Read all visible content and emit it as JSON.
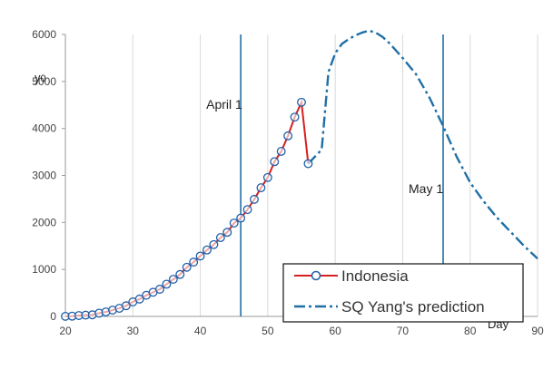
{
  "chart_data": {
    "type": "line",
    "title": "",
    "xlabel": "Day",
    "ylabel": "y0",
    "xlim": [
      20,
      90
    ],
    "ylim": [
      0,
      6000
    ],
    "x_ticks": [
      20,
      30,
      40,
      50,
      60,
      70,
      80,
      90
    ],
    "y_ticks": [
      0,
      1000,
      2000,
      3000,
      4000,
      5000,
      6000
    ],
    "grid": "vertical",
    "legend_position": "bottom-right",
    "colors": {
      "observed_line": "#d62020",
      "observed_marker": "#1f5fa8",
      "prediction": "#1f6fa6",
      "vline": "#1f6fa6",
      "grid": "#d9d9d9"
    },
    "series": [
      {
        "name": "Indonesia",
        "style": "line-with-circle-markers",
        "x": [
          20,
          21,
          22,
          23,
          24,
          25,
          26,
          27,
          28,
          29,
          30,
          31,
          32,
          33,
          34,
          35,
          36,
          37,
          38,
          39,
          40,
          41,
          42,
          43,
          44,
          45,
          46,
          47,
          48,
          49,
          50,
          51,
          52,
          53,
          54,
          55,
          56
        ],
        "y": [
          2,
          6,
          19,
          27,
          34,
          69,
          96,
          134,
          172,
          227,
          309,
          369,
          450,
          514,
          579,
          686,
          790,
          893,
          1046,
          1155,
          1285,
          1414,
          1528,
          1677,
          1790,
          1986,
          2092,
          2273,
          2491,
          2738,
          2956,
          3293,
          3512,
          3842,
          4241,
          4557,
          3250
        ]
      },
      {
        "name": "SQ Yang's prediction",
        "style": "dash-dot",
        "x": [
          56,
          58,
          59,
          60,
          61,
          62,
          63,
          64,
          65,
          66,
          67,
          68,
          70,
          72,
          74,
          76,
          78,
          80,
          82,
          84,
          86,
          88,
          90
        ],
        "y": [
          3250,
          3550,
          5200,
          5600,
          5800,
          5900,
          5980,
          6040,
          6080,
          6040,
          5950,
          5820,
          5500,
          5150,
          4650,
          4050,
          3400,
          2850,
          2450,
          2100,
          1800,
          1500,
          1230
        ]
      }
    ],
    "vertical_lines": [
      {
        "x": 46,
        "label": "April 1"
      },
      {
        "x": 76,
        "label": "May 1"
      }
    ]
  }
}
